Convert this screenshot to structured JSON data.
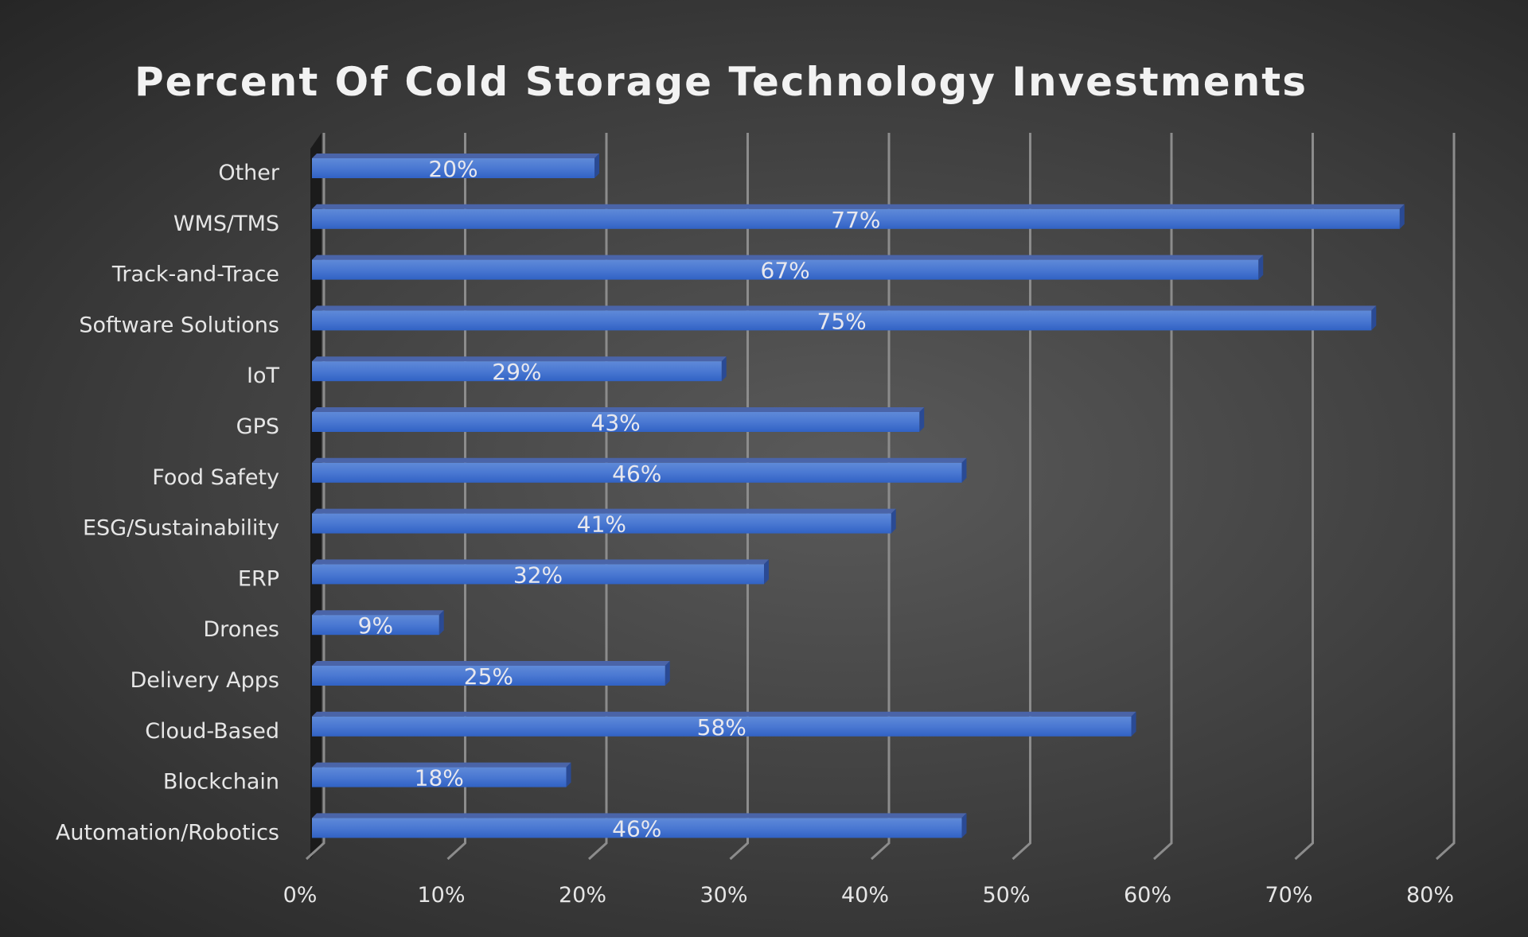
{
  "chart_data": {
    "type": "bar",
    "orientation": "horizontal",
    "style": "3d",
    "title": "Percent Of Cold Storage Technology Investments",
    "xlabel": "",
    "ylabel": "",
    "xlim": [
      0,
      80
    ],
    "x_ticks": [
      "0%",
      "10%",
      "20%",
      "30%",
      "40%",
      "50%",
      "60%",
      "70%",
      "80%"
    ],
    "grid": true,
    "legend": "none",
    "categories": [
      "Other",
      "WMS/TMS",
      "Track-and-Trace",
      "Software Solutions",
      "IoT",
      "GPS",
      "Food Safety",
      "ESG/Sustainability",
      "ERP",
      "Drones",
      "Delivery Apps",
      "Cloud-Based",
      "Blockchain",
      "Automation/Robotics"
    ],
    "values": [
      20,
      77,
      67,
      75,
      29,
      43,
      46,
      41,
      32,
      9,
      25,
      58,
      18,
      46
    ],
    "data_labels": [
      "20%",
      "77%",
      "67%",
      "75%",
      "29%",
      "43%",
      "46%",
      "41%",
      "32%",
      "9%",
      "25%",
      "58%",
      "18%",
      "46%"
    ],
    "colors": {
      "bar": "#3a6fd0",
      "bar_top": "#4a64a8",
      "bar_side": "#2a4a94",
      "background": "#444444",
      "text": "#e6e6e6"
    }
  }
}
